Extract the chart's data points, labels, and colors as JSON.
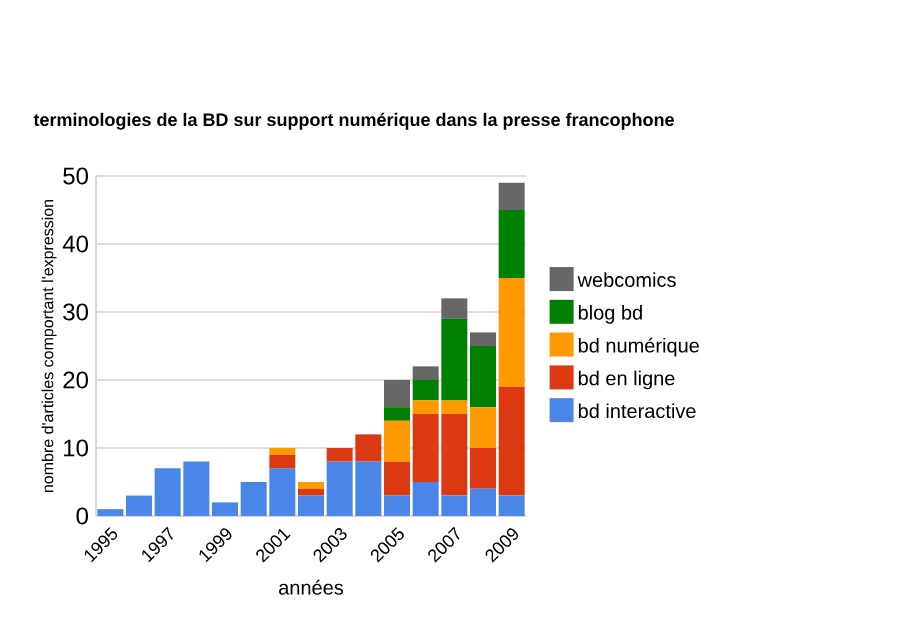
{
  "chart_data": {
    "type": "bar",
    "stacked": true,
    "title": "terminologies de la BD sur support numérique dans la presse francophone",
    "xlabel": "années",
    "ylabel": "nombre d'articles comportant l'expression",
    "categories": [
      "1995",
      null,
      "1997",
      null,
      "1999",
      null,
      "2001",
      null,
      "2003",
      null,
      "2005",
      null,
      "2007",
      null,
      "2009"
    ],
    "series": [
      {
        "name": "bd interactive",
        "color": "#4a86e8",
        "values": [
          1,
          3,
          7,
          8,
          2,
          5,
          7,
          3,
          8,
          8,
          3,
          5,
          3,
          4,
          3
        ]
      },
      {
        "name": "bd en ligne",
        "color": "#dc3912",
        "values": [
          0,
          0,
          0,
          0,
          0,
          0,
          2,
          1,
          2,
          4,
          5,
          10,
          12,
          6,
          16
        ]
      },
      {
        "name": "bd numérique",
        "color": "#ff9900",
        "values": [
          0,
          0,
          0,
          0,
          0,
          0,
          1,
          1,
          0,
          0,
          6,
          2,
          2,
          6,
          16
        ]
      },
      {
        "name": "blog bd",
        "color": "#008000",
        "values": [
          0,
          0,
          0,
          0,
          0,
          0,
          0,
          0,
          0,
          0,
          2,
          3,
          12,
          9,
          10
        ]
      },
      {
        "name": "webcomics",
        "color": "#666666",
        "values": [
          0,
          0,
          0,
          0,
          0,
          0,
          0,
          0,
          0,
          0,
          4,
          2,
          3,
          2,
          4
        ]
      }
    ],
    "ylim": [
      0,
      50
    ],
    "yticks": [
      0,
      10,
      20,
      30,
      40,
      50
    ],
    "grid": "y",
    "legend": "right"
  }
}
